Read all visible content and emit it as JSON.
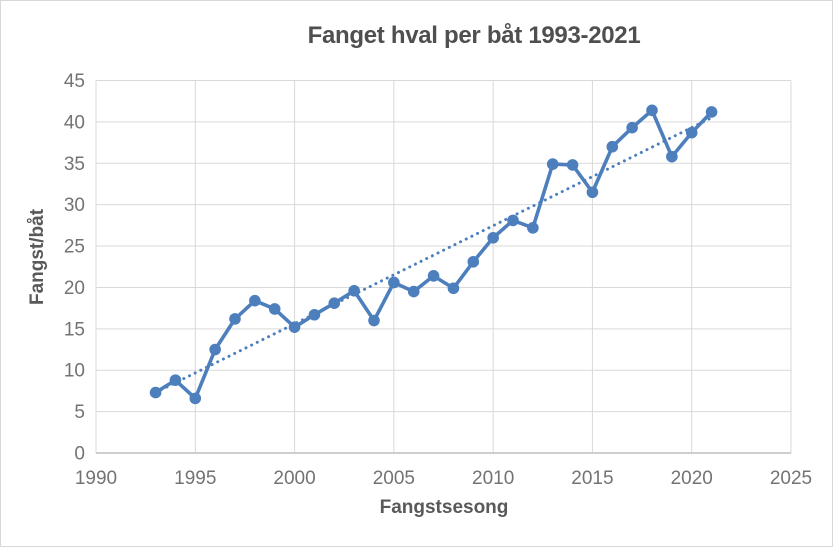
{
  "colors": {
    "series": "#4e7fbd",
    "trendline": "#4e7fbd",
    "gridline": "#d9d9d9",
    "axis_line": "#bfbfbf",
    "tick_label": "#737373",
    "axis_title": "#595959",
    "chart_title": "#4f4f4f",
    "background": "#ffffff",
    "frame_border": "#d7d7d7"
  },
  "chart_data": {
    "type": "line",
    "title": "Fanget hval per båt 1993-2021",
    "xlabel": "Fangstsesong",
    "ylabel": "Fangst/båt",
    "xlim": [
      1990,
      2025
    ],
    "ylim": [
      0,
      45
    ],
    "xticks": [
      1990,
      1995,
      2000,
      2005,
      2010,
      2015,
      2020,
      2025
    ],
    "yticks": [
      0,
      5,
      10,
      15,
      20,
      25,
      30,
      35,
      40,
      45
    ],
    "grid": true,
    "legend": false,
    "x": [
      1993,
      1994,
      1995,
      1996,
      1997,
      1998,
      1999,
      2000,
      2001,
      2002,
      2003,
      2004,
      2005,
      2006,
      2007,
      2008,
      2009,
      2010,
      2011,
      2012,
      2013,
      2014,
      2015,
      2016,
      2017,
      2018,
      2019,
      2020,
      2021
    ],
    "series": [
      {
        "name": "Fangst/båt",
        "role": "data",
        "style": "solid-line-round-markers",
        "values": [
          7.3,
          8.8,
          6.6,
          12.5,
          16.2,
          18.4,
          17.4,
          15.2,
          16.7,
          18.1,
          19.6,
          16.0,
          20.6,
          19.5,
          21.4,
          19.9,
          23.1,
          26.0,
          28.1,
          27.2,
          34.9,
          34.8,
          31.5,
          37.0,
          39.3,
          41.4,
          35.8,
          38.7,
          41.2
        ]
      },
      {
        "name": "Lineær trendlinje",
        "role": "trendline",
        "style": "dotted",
        "trend": {
          "x": [
            1993,
            2021
          ],
          "y": [
            7.3,
            40.5
          ]
        }
      }
    ]
  }
}
